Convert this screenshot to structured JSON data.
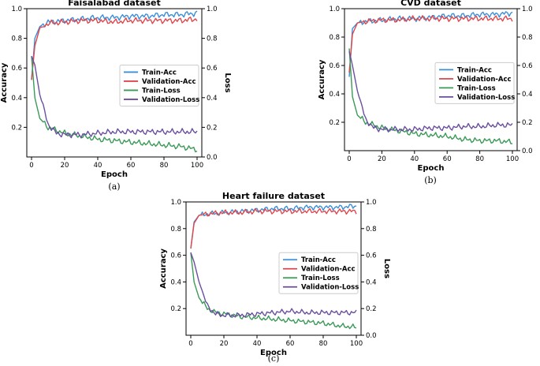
{
  "chart_data": [
    {
      "type": "line",
      "title": "Faisalabad dataset",
      "caption": "(a)",
      "xlabel": "Epoch",
      "ylabel": "Accuracy",
      "y2label": "Loss",
      "xlim": [
        0,
        100
      ],
      "ylim": [
        0.0,
        1.0
      ],
      "y2lim": [
        0.0,
        1.0
      ],
      "xticks": [
        "0",
        "20",
        "40",
        "60",
        "80",
        "100"
      ],
      "yticks_left": [
        "0.2",
        "0.4",
        "0.6",
        "0.8",
        "1.0"
      ],
      "yticks_right": [
        "0.0",
        "0.2",
        "0.4",
        "0.6",
        "0.8",
        "1.0"
      ],
      "legend_position": "center-right",
      "grid": false,
      "series": [
        {
          "name": "Train-Acc",
          "axis": "left",
          "color": "#3a8fd9",
          "x": [
            0,
            2,
            5,
            10,
            20,
            30,
            40,
            50,
            60,
            70,
            80,
            90,
            100
          ],
          "y": [
            0.52,
            0.8,
            0.88,
            0.91,
            0.92,
            0.93,
            0.94,
            0.94,
            0.95,
            0.95,
            0.96,
            0.96,
            0.97
          ]
        },
        {
          "name": "Validation-Acc",
          "axis": "left",
          "color": "#e0474c",
          "x": [
            0,
            2,
            5,
            10,
            20,
            30,
            40,
            50,
            60,
            70,
            80,
            90,
            100
          ],
          "y": [
            0.52,
            0.75,
            0.87,
            0.9,
            0.91,
            0.92,
            0.92,
            0.91,
            0.92,
            0.92,
            0.92,
            0.92,
            0.93
          ]
        },
        {
          "name": "Train-Loss",
          "axis": "right",
          "color": "#3a9a57",
          "x": [
            0,
            2,
            5,
            10,
            15,
            20,
            30,
            40,
            50,
            60,
            70,
            80,
            90,
            100
          ],
          "y": [
            0.68,
            0.4,
            0.26,
            0.2,
            0.18,
            0.16,
            0.14,
            0.12,
            0.11,
            0.1,
            0.09,
            0.08,
            0.07,
            0.05
          ]
        },
        {
          "name": "Validation-Loss",
          "axis": "right",
          "color": "#6a4fa0",
          "x": [
            0,
            2,
            5,
            10,
            15,
            20,
            30,
            40,
            50,
            60,
            70,
            80,
            90,
            100
          ],
          "y": [
            0.68,
            0.62,
            0.42,
            0.22,
            0.16,
            0.15,
            0.15,
            0.16,
            0.17,
            0.17,
            0.17,
            0.17,
            0.17,
            0.17
          ]
        }
      ]
    },
    {
      "type": "line",
      "title": "CVD dataset",
      "caption": "(b)",
      "xlabel": "Epoch",
      "ylabel": "Accuracy",
      "y2label": "Loss",
      "xlim": [
        0,
        100
      ],
      "ylim": [
        0.0,
        1.0
      ],
      "y2lim": [
        0.0,
        1.0
      ],
      "xticks": [
        "0",
        "20",
        "40",
        "60",
        "80",
        "100"
      ],
      "yticks_left": [
        "0.2",
        "0.4",
        "0.6",
        "0.8",
        "1.0"
      ],
      "yticks_right": [
        "0.0",
        "0.2",
        "0.4",
        "0.6",
        "0.8",
        "1.0"
      ],
      "legend_position": "center-right",
      "grid": false,
      "series": [
        {
          "name": "Train-Acc",
          "axis": "left",
          "color": "#3a8fd9",
          "x": [
            0,
            2,
            5,
            10,
            20,
            30,
            40,
            50,
            60,
            70,
            80,
            90,
            100
          ],
          "y": [
            0.52,
            0.86,
            0.9,
            0.91,
            0.92,
            0.93,
            0.93,
            0.94,
            0.95,
            0.95,
            0.96,
            0.96,
            0.97
          ]
        },
        {
          "name": "Validation-Acc",
          "axis": "left",
          "color": "#e0474c",
          "x": [
            0,
            2,
            5,
            10,
            20,
            30,
            40,
            50,
            60,
            70,
            80,
            90,
            100
          ],
          "y": [
            0.55,
            0.82,
            0.9,
            0.91,
            0.92,
            0.92,
            0.93,
            0.93,
            0.93,
            0.93,
            0.93,
            0.93,
            0.93
          ]
        },
        {
          "name": "Train-Loss",
          "axis": "right",
          "color": "#3a9a57",
          "x": [
            0,
            2,
            5,
            10,
            15,
            20,
            30,
            40,
            50,
            60,
            70,
            80,
            90,
            100
          ],
          "y": [
            0.72,
            0.38,
            0.25,
            0.2,
            0.18,
            0.16,
            0.14,
            0.12,
            0.11,
            0.1,
            0.08,
            0.07,
            0.07,
            0.06
          ]
        },
        {
          "name": "Validation-Loss",
          "axis": "right",
          "color": "#6a4fa0",
          "x": [
            0,
            2,
            5,
            10,
            15,
            20,
            30,
            40,
            50,
            60,
            70,
            80,
            90,
            100
          ],
          "y": [
            0.7,
            0.6,
            0.42,
            0.22,
            0.16,
            0.15,
            0.15,
            0.15,
            0.16,
            0.16,
            0.17,
            0.17,
            0.18,
            0.18
          ]
        }
      ]
    },
    {
      "type": "line",
      "title": "Heart failure dataset",
      "caption": "(c)",
      "xlabel": "Epoch",
      "ylabel": "Accuracy",
      "y2label": "Loss",
      "xlim": [
        0,
        100
      ],
      "ylim": [
        0.0,
        1.0
      ],
      "y2lim": [
        0.0,
        1.0
      ],
      "xticks": [
        "0",
        "20",
        "40",
        "60",
        "80",
        "100"
      ],
      "yticks_left": [
        "0.2",
        "0.4",
        "0.6",
        "0.8",
        "1.0"
      ],
      "yticks_right": [
        "0.0",
        "0.2",
        "0.4",
        "0.6",
        "0.8",
        "1.0"
      ],
      "legend_position": "center-right",
      "grid": false,
      "series": [
        {
          "name": "Train-Acc",
          "axis": "left",
          "color": "#3a8fd9",
          "x": [
            0,
            2,
            5,
            10,
            20,
            30,
            40,
            50,
            60,
            70,
            80,
            90,
            100
          ],
          "y": [
            0.65,
            0.85,
            0.9,
            0.91,
            0.92,
            0.93,
            0.94,
            0.95,
            0.95,
            0.96,
            0.96,
            0.96,
            0.97
          ]
        },
        {
          "name": "Validation-Acc",
          "axis": "left",
          "color": "#e0474c",
          "x": [
            0,
            2,
            5,
            10,
            20,
            30,
            40,
            50,
            60,
            70,
            80,
            90,
            100
          ],
          "y": [
            0.65,
            0.84,
            0.9,
            0.91,
            0.92,
            0.92,
            0.93,
            0.93,
            0.93,
            0.93,
            0.93,
            0.93,
            0.93
          ]
        },
        {
          "name": "Train-Loss",
          "axis": "right",
          "color": "#3a9a57",
          "x": [
            0,
            2,
            5,
            10,
            15,
            20,
            30,
            40,
            50,
            60,
            70,
            80,
            90,
            100
          ],
          "y": [
            0.62,
            0.4,
            0.28,
            0.2,
            0.17,
            0.16,
            0.14,
            0.13,
            0.12,
            0.11,
            0.1,
            0.09,
            0.07,
            0.06
          ]
        },
        {
          "name": "Validation-Loss",
          "axis": "right",
          "color": "#6a4fa0",
          "x": [
            0,
            2,
            5,
            10,
            15,
            20,
            30,
            40,
            50,
            60,
            70,
            80,
            90,
            100
          ],
          "y": [
            0.62,
            0.55,
            0.4,
            0.22,
            0.16,
            0.15,
            0.15,
            0.16,
            0.17,
            0.18,
            0.17,
            0.17,
            0.17,
            0.17
          ]
        }
      ]
    }
  ]
}
